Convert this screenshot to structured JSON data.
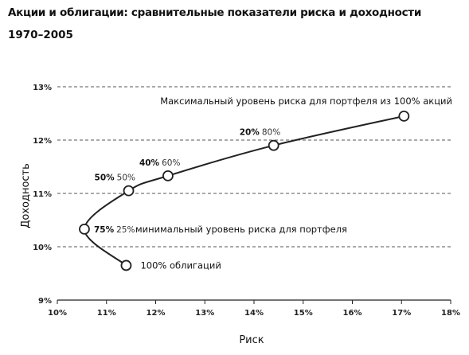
{
  "title": "Акции и облигации: сравнительные показатели риска и доходности",
  "subtitle": "1970–2005",
  "chart_data": {
    "type": "line",
    "xlabel": "Риск",
    "ylabel": "Доходность",
    "x_ticks": [
      "10%",
      "11%",
      "12%",
      "13%",
      "14%",
      "15%",
      "16%",
      "17%",
      "18%"
    ],
    "y_ticks": [
      "9%",
      "10%",
      "11%",
      "12%",
      "13%"
    ],
    "xlim": [
      10,
      18
    ],
    "ylim": [
      9,
      13
    ],
    "grid": "horizontal dashed",
    "points": [
      {
        "x": 11.4,
        "y": 9.65,
        "stocks": "",
        "bonds": "",
        "label": "100% облигаций"
      },
      {
        "x": 10.55,
        "y": 10.33,
        "stocks": "75%",
        "bonds": "25%",
        "label": "минимальный уровень риска для портфеля"
      },
      {
        "x": 11.45,
        "y": 11.05,
        "stocks": "50%",
        "bonds": "50%",
        "label": ""
      },
      {
        "x": 12.25,
        "y": 11.33,
        "stocks": "40%",
        "bonds": "60%",
        "label": ""
      },
      {
        "x": 14.4,
        "y": 11.9,
        "stocks": "20%",
        "bonds": "80%",
        "label": ""
      },
      {
        "x": 17.05,
        "y": 12.45,
        "stocks": "",
        "bonds": "",
        "label": "Максимальный уровень риска для портфеля из 100% акций"
      }
    ]
  }
}
